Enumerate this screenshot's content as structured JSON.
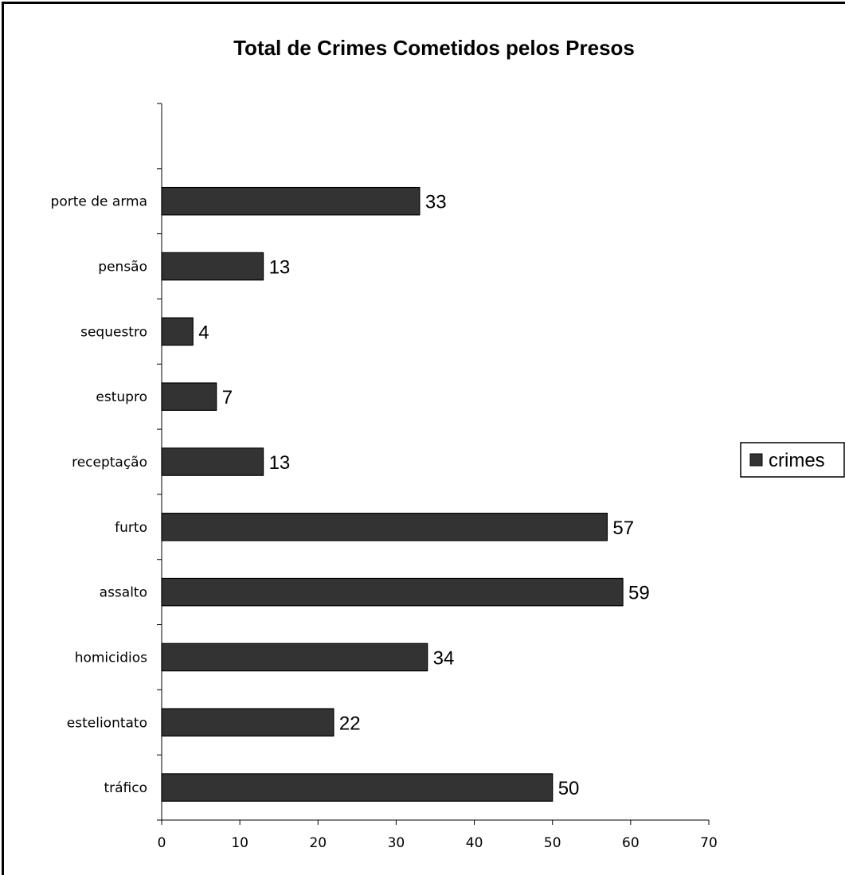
{
  "chart_data": {
    "type": "bar",
    "orientation": "horizontal",
    "title": "Total de Crimes Cometidos pelos Presos",
    "categories": [
      "tráfico",
      "esteliontato",
      "homicidios",
      "assalto",
      "furto",
      "receptação",
      "estupro",
      "sequestro",
      "pensão",
      "porte de arma"
    ],
    "series": [
      {
        "name": "crimes",
        "values": [
          50,
          22,
          34,
          59,
          57,
          13,
          7,
          4,
          13,
          33
        ],
        "color": "#333333"
      }
    ],
    "xlim": [
      0,
      70
    ],
    "x_ticks": [
      "0",
      "10",
      "20",
      "30",
      "40",
      "50",
      "60",
      "70"
    ],
    "empty_top_slots": 1,
    "grid": false,
    "data_labels": true,
    "legend_position": "right"
  }
}
